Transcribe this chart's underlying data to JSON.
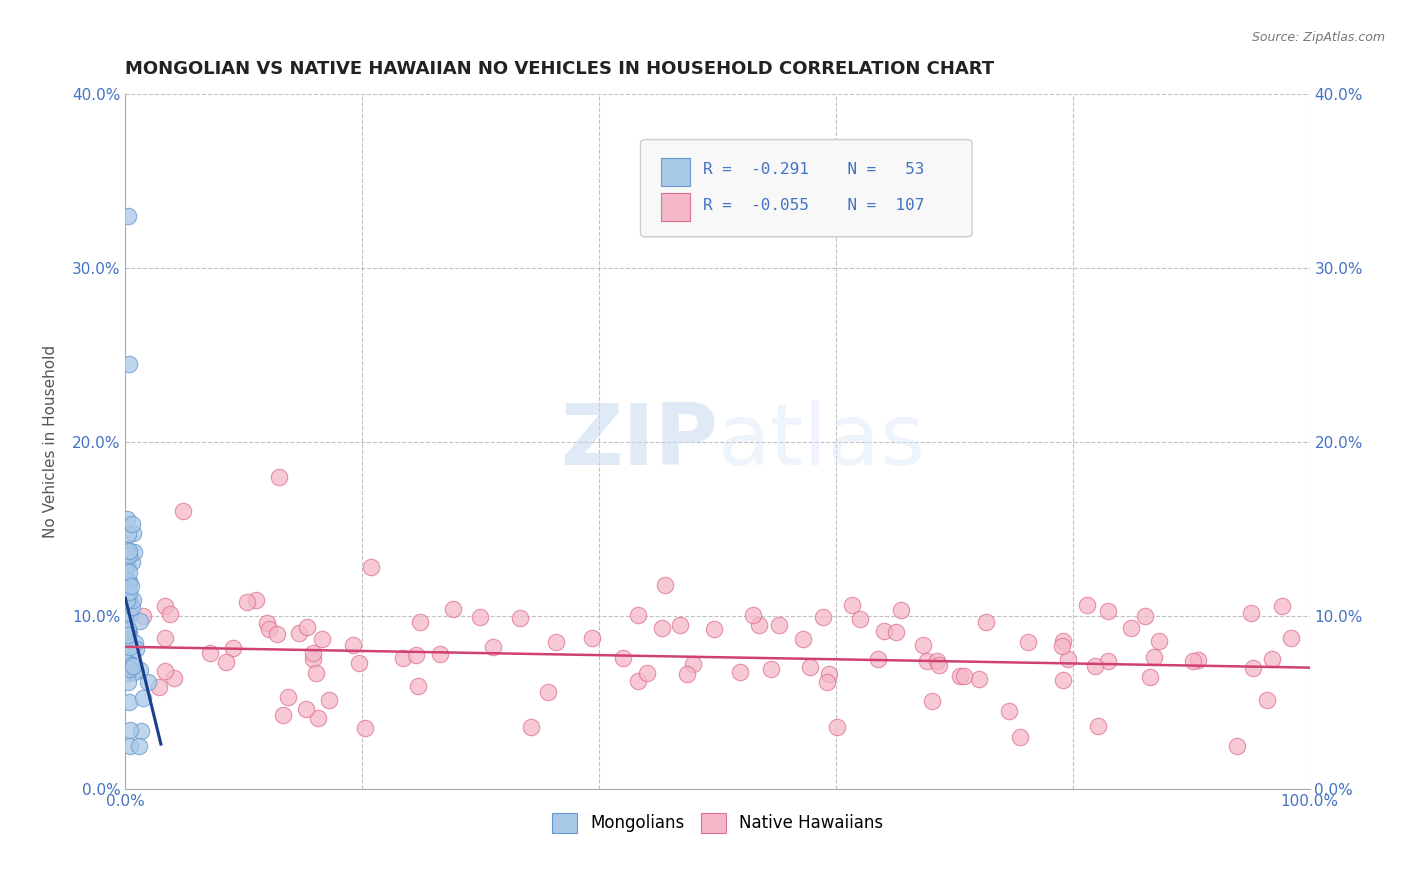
{
  "title": "MONGOLIAN VS NATIVE HAWAIIAN NO VEHICLES IN HOUSEHOLD CORRELATION CHART",
  "source": "Source: ZipAtlas.com",
  "ylabel": "No Vehicles in Household",
  "xlim": [
    0,
    100
  ],
  "ylim": [
    0,
    40
  ],
  "yticks": [
    0,
    10,
    20,
    30,
    40
  ],
  "yticklabels_left": [
    "0.0%",
    "10.0%",
    "20.0%",
    "30.0%",
    "40.0%"
  ],
  "yticklabels_right": [
    "0.0%",
    "10.0%",
    "20.0%",
    "30.0%",
    "40.0%"
  ],
  "mongolian_color": "#A8C8E8",
  "mongolian_edge": "#6699CC",
  "native_hawaiian_color": "#F4B8C8",
  "native_hawaiian_edge": "#E07090",
  "mongolian_R": -0.291,
  "mongolian_N": 53,
  "native_hawaiian_R": -0.055,
  "native_hawaiian_N": 107,
  "regression_color_mongolian": "#1A3F8F",
  "regression_color_native": "#D04070",
  "grid_color": "#BBBBBB",
  "title_color": "#222222",
  "tick_color": "#4472C4",
  "legend_face": "#F8F8F8",
  "legend_edge": "#CCCCCC",
  "background": "#FFFFFF"
}
